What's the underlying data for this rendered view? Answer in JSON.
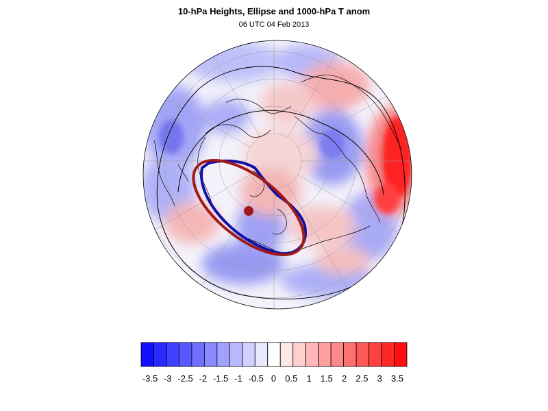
{
  "header": {
    "title": "10-hPa Heights, Ellipse and 1000-hPa T anom",
    "subtitle": "06 UTC 04 Feb 2013"
  },
  "colors": {
    "ellipse": "#a01818",
    "vortex_contour": "#1010a8",
    "centroid": "#a01818",
    "coast": "#000000",
    "height_contour": "#000000",
    "grid": "#999999"
  },
  "colorbar": {
    "tick_labels": [
      "-3.5",
      "-3",
      "-2.5",
      "-2",
      "-1.5",
      "-1",
      "-0.5",
      "0",
      "0.5",
      "1",
      "1.5",
      "2",
      "2.5",
      "3",
      "3.5"
    ],
    "colors": [
      "#1010ff",
      "#2828ff",
      "#4040ff",
      "#5858ff",
      "#7070ff",
      "#8888ff",
      "#a0a0ff",
      "#b8b8ff",
      "#d0d0ff",
      "#e8e8ff",
      "#ffffff",
      "#ffe8e8",
      "#ffd0d0",
      "#ffb8b8",
      "#ffa0a0",
      "#ff8888",
      "#ff7070",
      "#ff5858",
      "#ff4040",
      "#ff2828",
      "#ff1010"
    ]
  }
}
